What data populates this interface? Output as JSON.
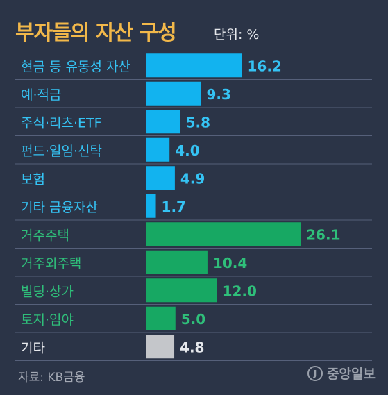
{
  "chart_data": {
    "type": "bar",
    "orientation": "horizontal",
    "title": "부자들의 자산 구성",
    "unit_label": "단위: %",
    "categories": [
      "현금 등 유동성 자산",
      "예·적금",
      "주식·리츠·ETF",
      "펀드·일임·신탁",
      "보험",
      "기타 금융자산",
      "거주주택",
      "거주외주택",
      "빌딩·상가",
      "토지·임야",
      "기타"
    ],
    "values": [
      16.2,
      9.3,
      5.8,
      4.0,
      4.9,
      1.7,
      26.1,
      10.4,
      12.0,
      5.0,
      4.8
    ],
    "value_labels": [
      "16.2",
      "9.3",
      "5.8",
      "4.0",
      "4.9",
      "1.7",
      "26.1",
      "10.4",
      "12.0",
      "5.0",
      "4.8"
    ],
    "groups": [
      "financial",
      "financial",
      "financial",
      "financial",
      "financial",
      "financial",
      "real_estate",
      "real_estate",
      "real_estate",
      "real_estate",
      "other"
    ],
    "colors": {
      "financial": "#12b3ef",
      "real_estate": "#17a863",
      "other": "#c4c6ca",
      "title": "#f2b84a",
      "background": "#2b3447"
    },
    "grid": false,
    "legend": "none"
  },
  "source": "자료: KB금융",
  "logo": {
    "mark": "J",
    "text": "중앙일보"
  }
}
